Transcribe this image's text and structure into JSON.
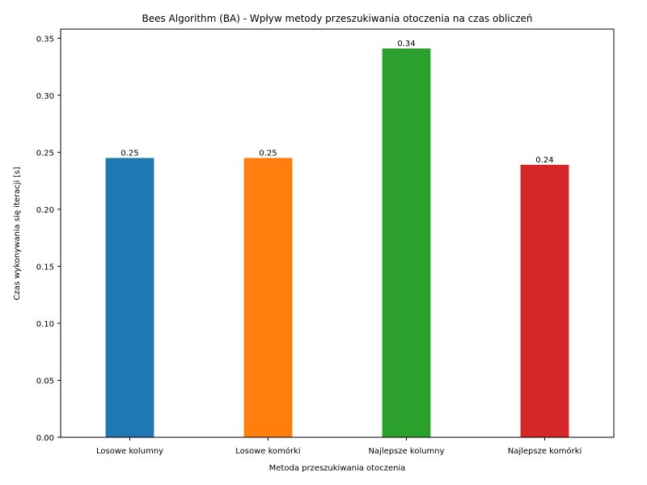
{
  "chart_data": {
    "type": "bar",
    "title": "Bees Algorithm (BA) - Wpływ metody przeszukiwania otoczenia na czas obliczeń",
    "xlabel": "Metoda przeszukiwania otoczenia",
    "ylabel": "Czas wykonywania się iteracji [s]",
    "categories": [
      "Losowe kolumny",
      "Losowe komórki",
      "Najlepsze kolumny",
      "Najlepsze komórki"
    ],
    "values": [
      0.245,
      0.245,
      0.341,
      0.239
    ],
    "data_labels": [
      "0.25",
      "0.25",
      "0.34",
      "0.24"
    ],
    "colors": [
      "#1f77b4",
      "#ff7f0e",
      "#2ca02c",
      "#d62728"
    ],
    "ylim": [
      0,
      0.358
    ],
    "yticks": [
      0.0,
      0.05,
      0.1,
      0.15,
      0.2,
      0.25,
      0.3,
      0.35
    ],
    "ytick_labels": [
      "0.00",
      "0.05",
      "0.10",
      "0.15",
      "0.20",
      "0.25",
      "0.30",
      "0.35"
    ],
    "grid": false,
    "legend": "none"
  }
}
